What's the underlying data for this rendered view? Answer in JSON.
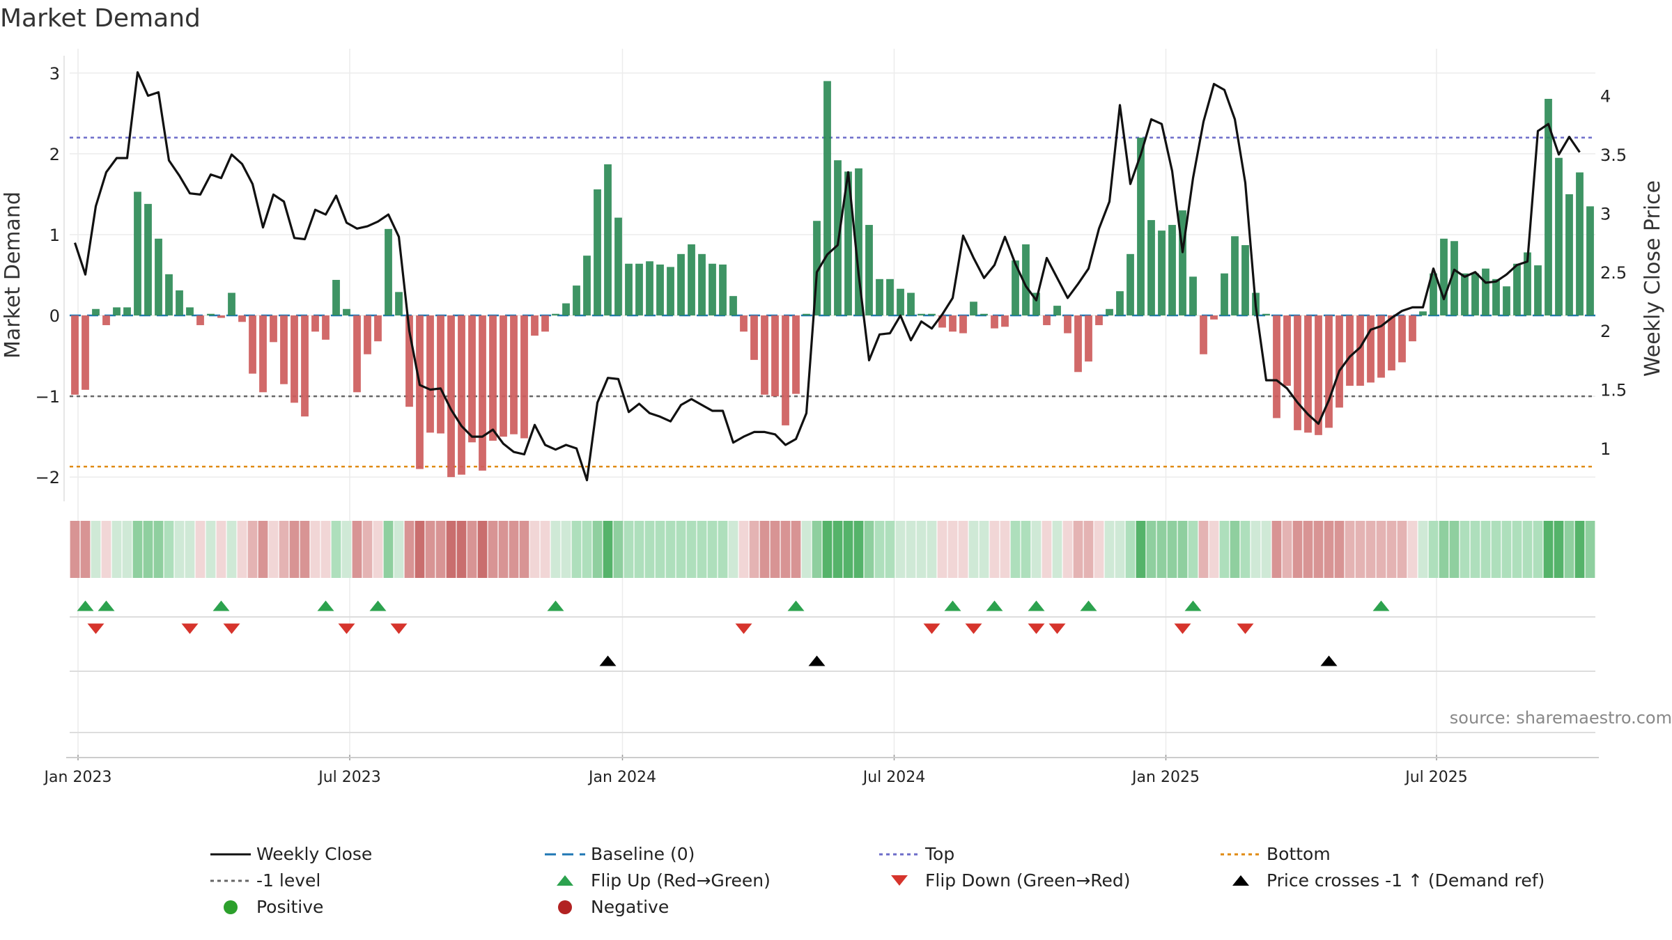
{
  "chart_data": {
    "type": "bar",
    "title": "Market Demand",
    "ylabel": "Market Demand",
    "y2label": "Weekly Close Price",
    "ylim": [
      -2.3,
      3.3
    ],
    "y2lim": [
      0.55,
      4.4
    ],
    "yticks": [
      -2,
      -1,
      0,
      1,
      2,
      3
    ],
    "y2ticks": [
      1,
      1.5,
      2,
      2.5,
      3,
      3.5,
      4
    ],
    "xticks": [
      "Jan 2023",
      "Jul 2023",
      "Jan 2024",
      "Jul 2024",
      "Jan 2025",
      "Jul 2025"
    ],
    "xtick_weeks": [
      0.3,
      26.3,
      52.4,
      78.4,
      104.4,
      130.3
    ],
    "reference_lines": {
      "top": 2.2,
      "minus_one": -1,
      "bottom": -1.87,
      "baseline": 0
    },
    "demand": [
      -0.98,
      -0.92,
      0.08,
      -0.12,
      0.1,
      0.1,
      1.53,
      1.38,
      0.95,
      0.51,
      0.31,
      0.1,
      -0.12,
      0.02,
      -0.03,
      0.28,
      -0.08,
      -0.72,
      -0.95,
      -0.33,
      -0.85,
      -1.08,
      -1.25,
      -0.2,
      -0.3,
      0.44,
      0.08,
      -0.95,
      -0.48,
      -0.32,
      1.07,
      0.29,
      -1.13,
      -1.9,
      -1.45,
      -1.46,
      -2.0,
      -1.97,
      -1.57,
      -1.92,
      -1.55,
      -1.5,
      -1.47,
      -1.52,
      -0.25,
      -0.2,
      0.02,
      0.15,
      0.37,
      0.74,
      1.56,
      1.87,
      1.21,
      0.64,
      0.64,
      0.67,
      0.63,
      0.6,
      0.76,
      0.88,
      0.76,
      0.64,
      0.63,
      0.24,
      -0.2,
      -0.55,
      -0.98,
      -1.0,
      -1.36,
      -0.97,
      0.02,
      1.17,
      2.9,
      1.92,
      1.78,
      1.82,
      1.12,
      0.45,
      0.45,
      0.33,
      0.28,
      0.02,
      0.02,
      -0.15,
      -0.2,
      -0.22,
      0.17,
      0.02,
      -0.16,
      -0.14,
      0.68,
      0.88,
      0.28,
      -0.12,
      0.12,
      -0.22,
      -0.7,
      -0.57,
      -0.12,
      0.08,
      0.3,
      0.76,
      2.2,
      1.18,
      1.05,
      1.12,
      1.3,
      0.48,
      -0.48,
      -0.05,
      0.52,
      0.98,
      0.87,
      0.28,
      0.02,
      -1.27,
      -0.87,
      -1.42,
      -1.45,
      -1.48,
      -1.39,
      -1.14,
      -0.87,
      -0.87,
      -0.83,
      -0.77,
      -0.68,
      -0.58,
      -0.32,
      0.05,
      0.52,
      0.95,
      0.92,
      0.52,
      0.52,
      0.58,
      0.45,
      0.36,
      0.64,
      0.78,
      0.62,
      2.68,
      1.95,
      1.5,
      1.77,
      1.35
    ],
    "close": [
      2.75,
      2.48,
      3.06,
      3.35,
      3.47,
      3.47,
      4.2,
      4.0,
      4.03,
      3.45,
      3.32,
      3.17,
      3.16,
      3.33,
      3.3,
      3.5,
      3.42,
      3.25,
      2.88,
      3.16,
      3.1,
      2.79,
      2.78,
      3.03,
      2.99,
      3.15,
      2.92,
      2.87,
      2.89,
      2.93,
      2.99,
      2.8,
      2.0,
      1.54,
      1.5,
      1.51,
      1.33,
      1.19,
      1.1,
      1.1,
      1.16,
      1.04,
      0.97,
      0.95,
      1.2,
      1.03,
      0.99,
      1.03,
      1.0,
      0.73,
      1.39,
      1.6,
      1.59,
      1.31,
      1.38,
      1.3,
      1.27,
      1.23,
      1.37,
      1.42,
      1.37,
      1.32,
      1.32,
      1.05,
      1.1,
      1.14,
      1.14,
      1.12,
      1.03,
      1.08,
      1.3,
      2.5,
      2.65,
      2.73,
      3.35,
      2.48,
      1.75,
      1.97,
      1.98,
      2.13,
      1.92,
      2.08,
      2.02,
      2.14,
      2.28,
      2.81,
      2.62,
      2.45,
      2.56,
      2.8,
      2.57,
      2.38,
      2.26,
      2.62,
      2.45,
      2.28,
      2.4,
      2.53,
      2.87,
      3.1,
      3.92,
      3.25,
      3.5,
      3.8,
      3.76,
      3.36,
      2.67,
      3.3,
      3.78,
      4.1,
      4.05,
      3.8,
      3.26,
      2.21,
      1.58,
      1.58,
      1.51,
      1.39,
      1.29,
      1.21,
      1.41,
      1.66,
      1.78,
      1.86,
      2.01,
      2.04,
      2.11,
      2.17,
      2.2,
      2.2,
      2.53,
      2.27,
      2.52,
      2.46,
      2.5,
      2.41,
      2.42,
      2.48,
      2.56,
      2.59,
      3.7,
      3.76,
      3.5,
      3.65,
      3.52
    ],
    "flip_up_weeks": [
      1,
      3,
      14,
      24,
      29,
      46,
      69,
      84,
      88,
      92,
      97,
      107,
      125
    ],
    "flip_down_weeks": [
      2,
      11,
      15,
      26,
      31,
      64,
      82,
      86,
      92,
      94,
      106,
      112
    ],
    "price_cross_weeks": [
      51,
      71,
      120
    ],
    "heat_colors": {
      "pos": [
        "#cfe9d6",
        "#aedfbc",
        "#8fcf9f",
        "#55b36a"
      ],
      "neg": [
        "#f1d6d6",
        "#e4b3b3",
        "#d89494",
        "#c96e6e"
      ]
    }
  },
  "colors": {
    "pos_bar": "#2e8b57",
    "neg_bar": "#cd5c5c",
    "close_line": "#111111",
    "baseline": "#1f77b4",
    "top": "#6c6cc9",
    "minus_one": "#666666",
    "bottom": "#e08a12",
    "flip_up": "#2ca24e",
    "flip_down": "#d6342c",
    "cross": "#000000",
    "positive_dot": "#2ca02c",
    "negative_dot": "#b22222"
  },
  "source": "source: sharemaestro.com",
  "legend": [
    {
      "key": "close",
      "label": "Weekly Close"
    },
    {
      "key": "baseline",
      "label": "Baseline (0)"
    },
    {
      "key": "top",
      "label": "Top"
    },
    {
      "key": "bottom",
      "label": "Bottom"
    },
    {
      "key": "minus_one",
      "label": "-1 level"
    },
    {
      "key": "flip_up",
      "label": "Flip Up (Red→Green)"
    },
    {
      "key": "flip_down",
      "label": "Flip Down (Green→Red)"
    },
    {
      "key": "cross",
      "label": "Price crosses -1 ↑ (Demand ref)"
    },
    {
      "key": "positive",
      "label": "Positive"
    },
    {
      "key": "negative",
      "label": "Negative"
    }
  ]
}
